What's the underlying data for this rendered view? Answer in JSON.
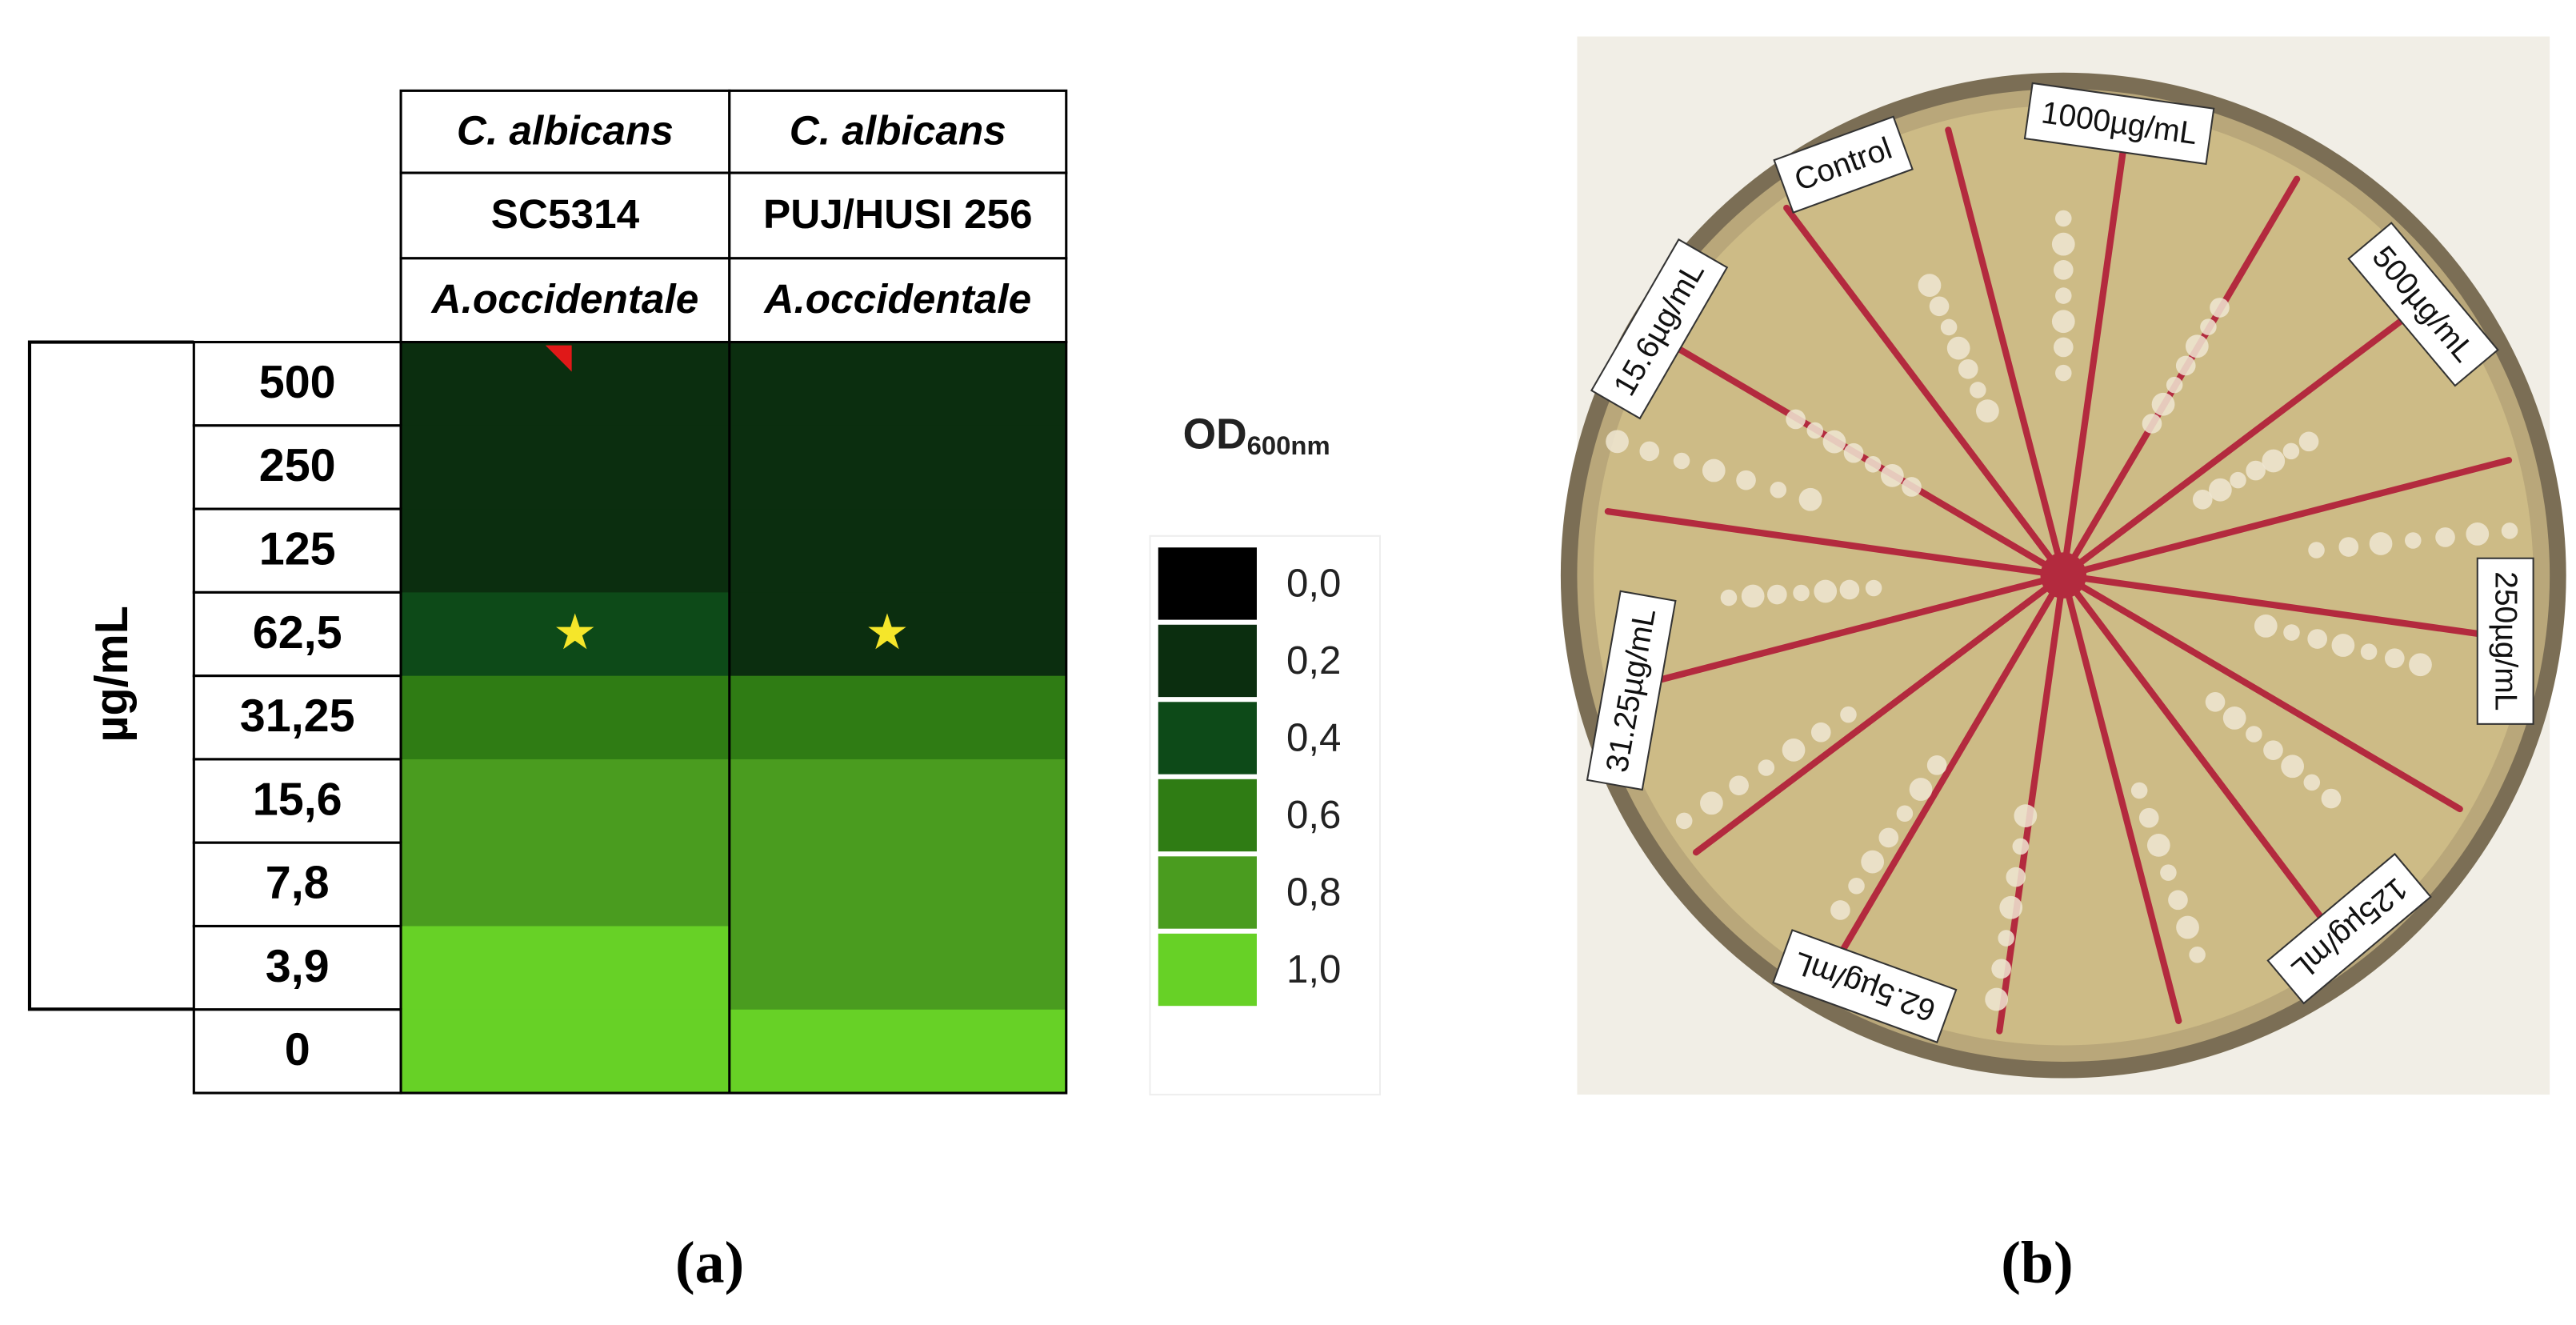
{
  "panel_a": {
    "header_rows": [
      [
        "C. albicans",
        "C. albicans"
      ],
      [
        "SC5314",
        "PUJ/HUSI 256"
      ],
      [
        "A.occidentale",
        "A.occidentale"
      ]
    ],
    "axis_label": "µg/mL",
    "concentrations": [
      "500",
      "250",
      "125",
      "62,5",
      "31,25",
      "15,6",
      "7,8",
      "3,9",
      "0"
    ],
    "cells": [
      [
        {
          "od": 0.2
        },
        {
          "od": 0.2
        }
      ],
      [
        {
          "od": 0.2
        },
        {
          "od": 0.2
        }
      ],
      [
        {
          "od": 0.2
        },
        {
          "od": 0.2
        }
      ],
      [
        {
          "od": 0.4,
          "marker": "★"
        },
        {
          "od": 0.2,
          "marker": "★"
        }
      ],
      [
        {
          "od": 0.6
        },
        {
          "od": 0.6
        }
      ],
      [
        {
          "od": 0.8
        },
        {
          "od": 0.8
        }
      ],
      [
        {
          "od": 0.8
        },
        {
          "od": 0.8
        }
      ],
      [
        {
          "od": 1.0
        },
        {
          "od": 0.8
        }
      ],
      [
        {
          "od": 1.0
        },
        {
          "od": 1.0
        }
      ]
    ],
    "legend": {
      "title": "OD",
      "title_sub": "600nm",
      "items": [
        {
          "value": 0.0,
          "label": "0,0",
          "color": "#000000"
        },
        {
          "value": 0.2,
          "label": "0,2",
          "color": "#0b2e0f"
        },
        {
          "value": 0.4,
          "label": "0,4",
          "color": "#0d4a18"
        },
        {
          "value": 0.6,
          "label": "0,6",
          "color": "#2f7c14"
        },
        {
          "value": 0.8,
          "label": "0,8",
          "color": "#4a9c1f"
        },
        {
          "value": 1.0,
          "label": "1,0",
          "color": "#67d126"
        }
      ]
    },
    "caption": "(a)"
  },
  "panel_b": {
    "labels": [
      "Control",
      "1000µg/mL",
      "500µg/mL",
      "250µg/mL",
      "125µg/mL",
      "62.5µg/mL",
      "31.25µg/mL",
      "15.6µg/mL"
    ],
    "caption": "(b)"
  }
}
